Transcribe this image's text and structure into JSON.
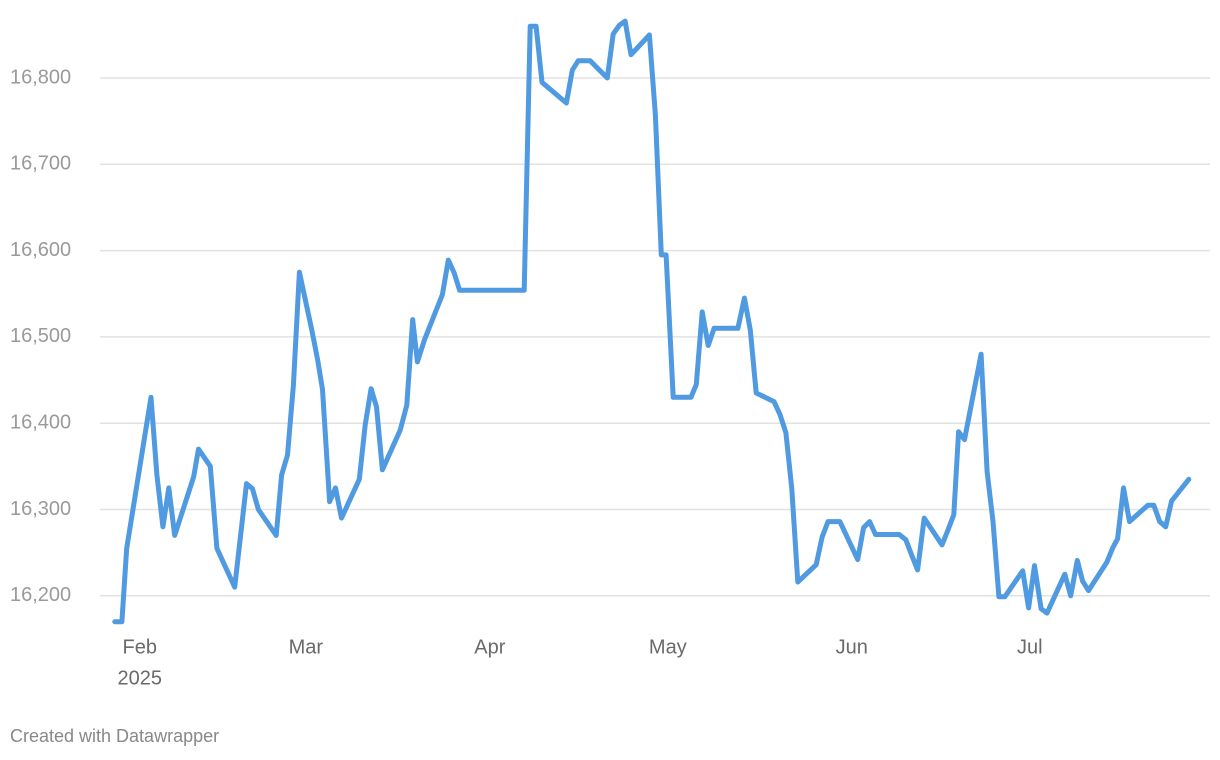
{
  "chart_data": {
    "type": "line",
    "x": [
      -4.2,
      -3,
      -2.2,
      1.9,
      2.9,
      3.9,
      4.9,
      5.9,
      9.1,
      9.9,
      11.9,
      13,
      16,
      18,
      19,
      20,
      23,
      23.9,
      24.9,
      25.9,
      26.9,
      29,
      30,
      30.8,
      32,
      33,
      34,
      37,
      38,
      39,
      39.9,
      40.9,
      43.9,
      45,
      46,
      46.8,
      48,
      51,
      52,
      53,
      53.9,
      64.8,
      65.8,
      66.8,
      67.8,
      71.9,
      72.9,
      73.9,
      75.9,
      78.8,
      79.8,
      80.8,
      81.8,
      82.8,
      85.9,
      86.9,
      87.9,
      88.7,
      89.9,
      92.9,
      93.8,
      94.8,
      95.8,
      96.8,
      100.8,
      101.9,
      102.9,
      103.9,
      106.9,
      107.9,
      108.9,
      109.9,
      110.9,
      114,
      115,
      116,
      118,
      121,
      122,
      123,
      124,
      128,
      129.1,
      130.1,
      131.1,
      132.2,
      135.2,
      136.2,
      137.2,
      138,
      139,
      141.8,
      142.8,
      143.8,
      144.8,
      145.8,
      148.8,
      149.8,
      150.8,
      151.9,
      152.9,
      155.9,
      156.9,
      158,
      158.9,
      159.9,
      163,
      164,
      164.8,
      165.8,
      166.8,
      169.9,
      170.9,
      171.9,
      172.9,
      173.9,
      176.8
    ],
    "series": [
      {
        "color": "#4f9ae0",
        "values": [
          16170,
          16170,
          16255,
          16430,
          16340,
          16280,
          16325,
          16270,
          16338,
          16370,
          16350,
          16255,
          16210,
          16330,
          16324,
          16300,
          16270,
          16340,
          16363,
          16444,
          16575,
          16508,
          16473,
          16439,
          16309,
          16325,
          16290,
          16335,
          16398,
          16440,
          16419,
          16346,
          16392,
          16421,
          16520,
          16471,
          16497,
          16549,
          16589,
          16574,
          16554,
          16554,
          16860,
          16860,
          16795,
          16771,
          16809,
          16820,
          16820,
          16800,
          16851,
          16861,
          16866,
          16827,
          16850,
          16757,
          16595,
          16595,
          16430,
          16430,
          16445,
          16529,
          16490,
          16510,
          16510,
          16545,
          16508,
          16435,
          16425,
          16410,
          16389,
          16324,
          16216,
          16236,
          16268,
          16286,
          16286,
          16242,
          16279,
          16286,
          16271,
          16271,
          16265,
          16247,
          16230,
          16290,
          16259,
          16276,
          16294,
          16390,
          16381,
          16480,
          16344,
          16286,
          16199,
          16199,
          16229,
          16186,
          16235,
          16185,
          16180,
          16225,
          16200,
          16241,
          16217,
          16206,
          16239,
          16256,
          16266,
          16325,
          16286,
          16305,
          16305,
          16286,
          16280,
          16310,
          16335
        ]
      }
    ],
    "xlim": [
      -4,
      177
    ],
    "xticks": [
      {
        "value": 0,
        "label": "Feb"
      },
      {
        "value": 28,
        "label": "Mar"
      },
      {
        "value": 59,
        "label": "Apr"
      },
      {
        "value": 89,
        "label": "May"
      },
      {
        "value": 120,
        "label": "Jun"
      },
      {
        "value": 150,
        "label": "Jul"
      }
    ],
    "x_year_label": "2025",
    "ylim": [
      16165,
      16870
    ],
    "yticks": [
      {
        "value": 16200,
        "label": "16,200"
      },
      {
        "value": 16300,
        "label": "16,300"
      },
      {
        "value": 16400,
        "label": "16,400"
      },
      {
        "value": 16500,
        "label": "16,500"
      },
      {
        "value": 16600,
        "label": "16,600"
      },
      {
        "value": 16700,
        "label": "16,700"
      },
      {
        "value": 16800,
        "label": "16,800"
      }
    ],
    "grid": true,
    "footer": "Created with Datawrapper"
  }
}
